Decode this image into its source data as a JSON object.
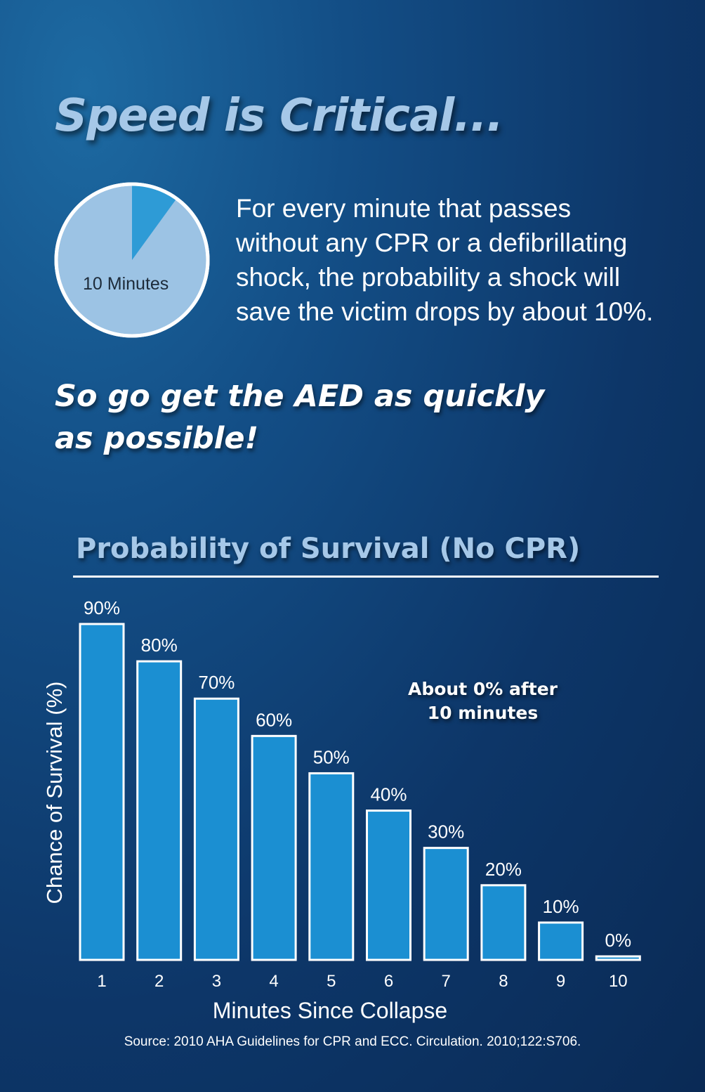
{
  "headline": "Speed is Critical...",
  "pie": {
    "label": "10 Minutes",
    "fraction": 0.1,
    "colors": {
      "base": "#9cc3e4",
      "slice": "#2e9bd6",
      "border": "#ffffff"
    }
  },
  "intro_text": "For every minute that passes without any CPR or a defibrillating shock, the probability a shock will save the victim drops by about 10%.",
  "call_to_action": "So go get the AED as quickly as possible!",
  "chart_title": "Probability of Survival (No CPR)",
  "annotation": {
    "line1": "About 0% after",
    "line2": "10 minutes"
  },
  "chart_data": {
    "type": "bar",
    "title": "Probability of Survival (No CPR)",
    "xlabel": "Minutes Since Collapse",
    "ylabel": "Chance of Survival (%)",
    "categories": [
      "1",
      "2",
      "3",
      "4",
      "5",
      "6",
      "7",
      "8",
      "9",
      "10"
    ],
    "values": [
      90,
      80,
      70,
      60,
      50,
      40,
      30,
      20,
      10,
      0
    ],
    "data_labels": [
      "90%",
      "80%",
      "70%",
      "60%",
      "50%",
      "40%",
      "30%",
      "20%",
      "10%",
      "0%"
    ],
    "ylim": [
      0,
      90
    ],
    "grid": false,
    "bar_color": "#1b8fd2",
    "bar_border": "#ffffff"
  },
  "source": "Source: 2010 AHA Guidelines for CPR and ECC. Circulation. 2010;122:S706."
}
